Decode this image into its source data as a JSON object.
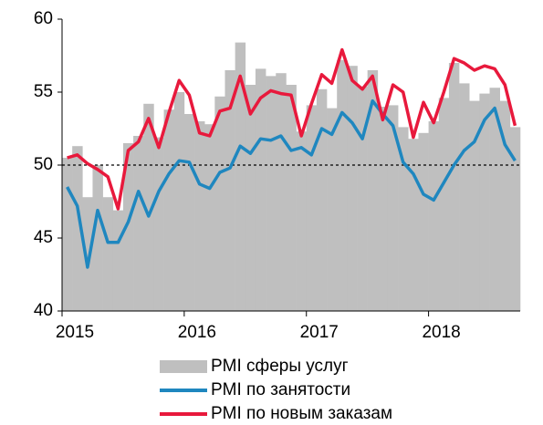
{
  "chart_data": {
    "type": "bar-line",
    "categories": [
      "2015",
      null,
      null,
      null,
      null,
      null,
      null,
      null,
      null,
      null,
      null,
      null,
      "2016",
      null,
      null,
      null,
      null,
      null,
      null,
      null,
      null,
      null,
      null,
      null,
      "2017",
      null,
      null,
      null,
      null,
      null,
      null,
      null,
      null,
      null,
      null,
      null,
      "2018",
      null,
      null,
      null,
      null,
      null,
      null,
      null,
      null
    ],
    "series": [
      {
        "name": "PMI сферы услуг",
        "color": "#bfbfbf",
        "kind": "bar",
        "values": [
          50.5,
          51.3,
          47.8,
          50.0,
          47.8,
          46.9,
          51.5,
          52.0,
          54.2,
          51.9,
          53.8,
          55.0,
          53.5,
          53.0,
          52.8,
          54.7,
          56.5,
          58.4,
          55.5,
          56.6,
          56.1,
          56.3,
          55.5,
          52.3,
          54.1,
          55.2,
          53.9,
          57.2,
          56.8,
          55.4,
          56.5,
          54.0,
          54.1,
          52.6,
          51.8,
          52.2,
          53.0,
          54.6,
          57.0,
          55.6,
          54.4,
          54.9,
          55.3,
          54.4,
          52.6
        ]
      },
      {
        "name": "PMI по занятости",
        "color": "#1f87bf",
        "kind": "line",
        "values": [
          48.5,
          47.2,
          43.0,
          46.9,
          44.7,
          44.7,
          46.1,
          48.2,
          46.5,
          48.2,
          49.4,
          50.3,
          50.2,
          48.7,
          48.4,
          49.5,
          49.8,
          51.3,
          50.8,
          51.8,
          51.7,
          52.0,
          51.0,
          51.2,
          50.7,
          52.5,
          52.1,
          53.6,
          52.9,
          51.8,
          54.4,
          53.5,
          52.7,
          50.2,
          49.4,
          48.0,
          47.6,
          48.8,
          50.0,
          51.0,
          51.6,
          53.1,
          53.9,
          51.4,
          50.3
        ]
      },
      {
        "name": "PMI по новым заказам",
        "color": "#e8193c",
        "kind": "line",
        "values": [
          50.5,
          50.7,
          50.1,
          49.7,
          49.2,
          47.0,
          51.0,
          51.6,
          53.2,
          51.2,
          53.6,
          55.8,
          54.8,
          52.2,
          52.0,
          53.7,
          53.9,
          56.1,
          53.5,
          54.6,
          55.1,
          54.9,
          54.8,
          52.0,
          54.2,
          56.2,
          55.6,
          57.9,
          55.8,
          55.2,
          56.1,
          53.1,
          55.5,
          55.0,
          51.9,
          54.3,
          52.9,
          55.0,
          57.3,
          57.0,
          56.5,
          56.8,
          56.6,
          55.5,
          52.7
        ]
      }
    ],
    "ylim": [
      40,
      60
    ],
    "yticks": [
      40,
      45,
      50,
      55,
      60
    ],
    "reference_line": 50,
    "legend": "bottom"
  }
}
